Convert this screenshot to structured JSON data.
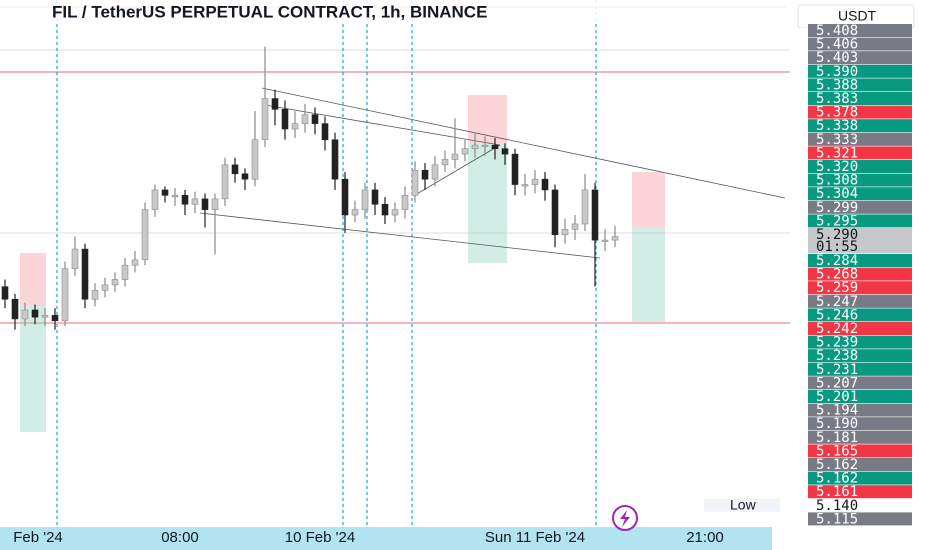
{
  "chart_data": {
    "type": "candlestick",
    "title": "FIL / TetherUS PERPETUAL CONTRACT, 1h, BINANCE",
    "currency": "USDT",
    "up_color": "#c8c8c8",
    "down_color": "#222222",
    "ylim": [
      5.129,
      5.422
    ],
    "ohlc": [
      [
        5.262,
        5.266,
        5.25,
        5.255
      ],
      [
        5.255,
        5.258,
        5.238,
        5.244
      ],
      [
        5.244,
        5.253,
        5.24,
        5.249
      ],
      [
        5.249,
        5.252,
        5.241,
        5.245
      ],
      [
        5.245,
        5.25,
        5.24,
        5.246
      ],
      [
        5.246,
        5.25,
        5.238,
        5.243
      ],
      [
        5.243,
        5.276,
        5.24,
        5.272
      ],
      [
        5.272,
        5.29,
        5.268,
        5.283
      ],
      [
        5.283,
        5.286,
        5.25,
        5.255
      ],
      [
        5.255,
        5.264,
        5.251,
        5.26
      ],
      [
        5.26,
        5.267,
        5.256,
        5.263
      ],
      [
        5.263,
        5.27,
        5.259,
        5.266
      ],
      [
        5.266,
        5.278,
        5.262,
        5.274
      ],
      [
        5.274,
        5.282,
        5.27,
        5.277
      ],
      [
        5.277,
        5.309,
        5.274,
        5.305
      ],
      [
        5.305,
        5.319,
        5.301,
        5.316
      ],
      [
        5.316,
        5.318,
        5.309,
        5.313
      ],
      [
        5.313,
        5.317,
        5.307,
        5.313
      ],
      [
        5.313,
        5.316,
        5.302,
        5.308
      ],
      [
        5.308,
        5.315,
        5.303,
        5.311
      ],
      [
        5.311,
        5.314,
        5.295,
        5.305
      ],
      [
        5.305,
        5.314,
        5.28,
        5.311
      ],
      [
        5.311,
        5.334,
        5.307,
        5.33
      ],
      [
        5.33,
        5.334,
        5.32,
        5.325
      ],
      [
        5.325,
        5.328,
        5.316,
        5.322
      ],
      [
        5.322,
        5.36,
        5.318,
        5.344
      ],
      [
        5.344,
        5.396,
        5.34,
        5.367
      ],
      [
        5.367,
        5.372,
        5.352,
        5.361
      ],
      [
        5.361,
        5.366,
        5.344,
        5.35
      ],
      [
        5.35,
        5.36,
        5.345,
        5.353
      ],
      [
        5.353,
        5.364,
        5.348,
        5.358
      ],
      [
        5.358,
        5.362,
        5.347,
        5.353
      ],
      [
        5.353,
        5.357,
        5.338,
        5.344
      ],
      [
        5.344,
        5.348,
        5.316,
        5.322
      ],
      [
        5.322,
        5.326,
        5.292,
        5.302
      ],
      [
        5.302,
        5.31,
        5.298,
        5.305
      ],
      [
        5.305,
        5.32,
        5.3,
        5.316
      ],
      [
        5.316,
        5.32,
        5.302,
        5.308
      ],
      [
        5.308,
        5.312,
        5.297,
        5.302
      ],
      [
        5.302,
        5.309,
        5.298,
        5.305
      ],
      [
        5.305,
        5.318,
        5.3,
        5.313
      ],
      [
        5.313,
        5.332,
        5.309,
        5.327
      ],
      [
        5.327,
        5.331,
        5.316,
        5.322
      ],
      [
        5.322,
        5.335,
        5.318,
        5.33
      ],
      [
        5.33,
        5.338,
        5.326,
        5.333
      ],
      [
        5.333,
        5.356,
        5.328,
        5.336
      ],
      [
        5.336,
        5.344,
        5.332,
        5.339
      ],
      [
        5.339,
        5.348,
        5.334,
        5.341
      ],
      [
        5.341,
        5.346,
        5.335,
        5.341
      ],
      [
        5.341,
        5.345,
        5.333,
        5.339
      ],
      [
        5.339,
        5.342,
        5.33,
        5.336
      ],
      [
        5.336,
        5.339,
        5.313,
        5.319
      ],
      [
        5.319,
        5.325,
        5.313,
        5.319
      ],
      [
        5.319,
        5.327,
        5.314,
        5.322
      ],
      [
        5.322,
        5.326,
        5.31,
        5.316
      ],
      [
        5.316,
        5.319,
        5.284,
        5.291
      ],
      [
        5.291,
        5.3,
        5.286,
        5.294
      ],
      [
        5.294,
        5.302,
        5.288,
        5.297
      ],
      [
        5.297,
        5.325,
        5.293,
        5.316
      ],
      [
        5.316,
        5.32,
        5.262,
        5.288
      ],
      [
        5.288,
        5.294,
        5.282,
        5.288
      ],
      [
        5.288,
        5.296,
        5.284,
        5.29
      ]
    ],
    "x_labels": [
      "Feb '24",
      "08:00",
      "10 Feb '24",
      "Sun 11 Feb '24",
      "21:00"
    ],
    "price_labels": [
      {
        "label": "5.408",
        "color": "#787b86"
      },
      {
        "label": "5.406",
        "color": "#787b86"
      },
      {
        "label": "5.403",
        "color": "#787b86"
      },
      {
        "label": "5.390",
        "color": "#089981"
      },
      {
        "label": "5.388",
        "color": "#089981"
      },
      {
        "label": "5.383",
        "color": "#089981"
      },
      {
        "label": "5.378",
        "color": "#f23645"
      },
      {
        "label": "5.338",
        "color": "#089981"
      },
      {
        "label": "5.333",
        "color": "#787b86"
      },
      {
        "label": "5.321",
        "color": "#f23645"
      },
      {
        "label": "5.320",
        "color": "#089981"
      },
      {
        "label": "5.308",
        "color": "#089981"
      },
      {
        "label": "5.304",
        "color": "#089981"
      },
      {
        "label": "5.299",
        "color": "#787b86"
      },
      {
        "label": "5.295",
        "color": "#089981"
      },
      {
        "label": "5.290",
        "sub": "01:55",
        "color": "#c7c8cc"
      },
      {
        "label": "5.284",
        "color": "#089981"
      },
      {
        "label": "5.268",
        "color": "#f23645"
      },
      {
        "label": "5.259",
        "color": "#f23645"
      },
      {
        "label": "5.247",
        "color": "#787b86"
      },
      {
        "label": "5.246",
        "color": "#089981"
      },
      {
        "label": "5.242",
        "color": "#f23645"
      },
      {
        "label": "5.239",
        "color": "#089981"
      },
      {
        "label": "5.238",
        "color": "#089981"
      },
      {
        "label": "5.231",
        "color": "#089981"
      },
      {
        "label": "5.207",
        "color": "#787b86"
      },
      {
        "label": "5.201",
        "color": "#089981"
      },
      {
        "label": "5.194",
        "color": "#787b86"
      },
      {
        "label": "5.190",
        "color": "#787b86"
      },
      {
        "label": "5.181",
        "color": "#787b86"
      },
      {
        "label": "5.165",
        "color": "#f23645"
      },
      {
        "label": "5.162",
        "color": "#787b86"
      },
      {
        "label": "5.162",
        "color": "#089981"
      },
      {
        "label": "5.161",
        "color": "#f23645"
      },
      {
        "label": "5.140",
        "tag": "Low",
        "color": "#ffffff"
      },
      {
        "label": "5.115",
        "color": "#787b86"
      }
    ]
  }
}
